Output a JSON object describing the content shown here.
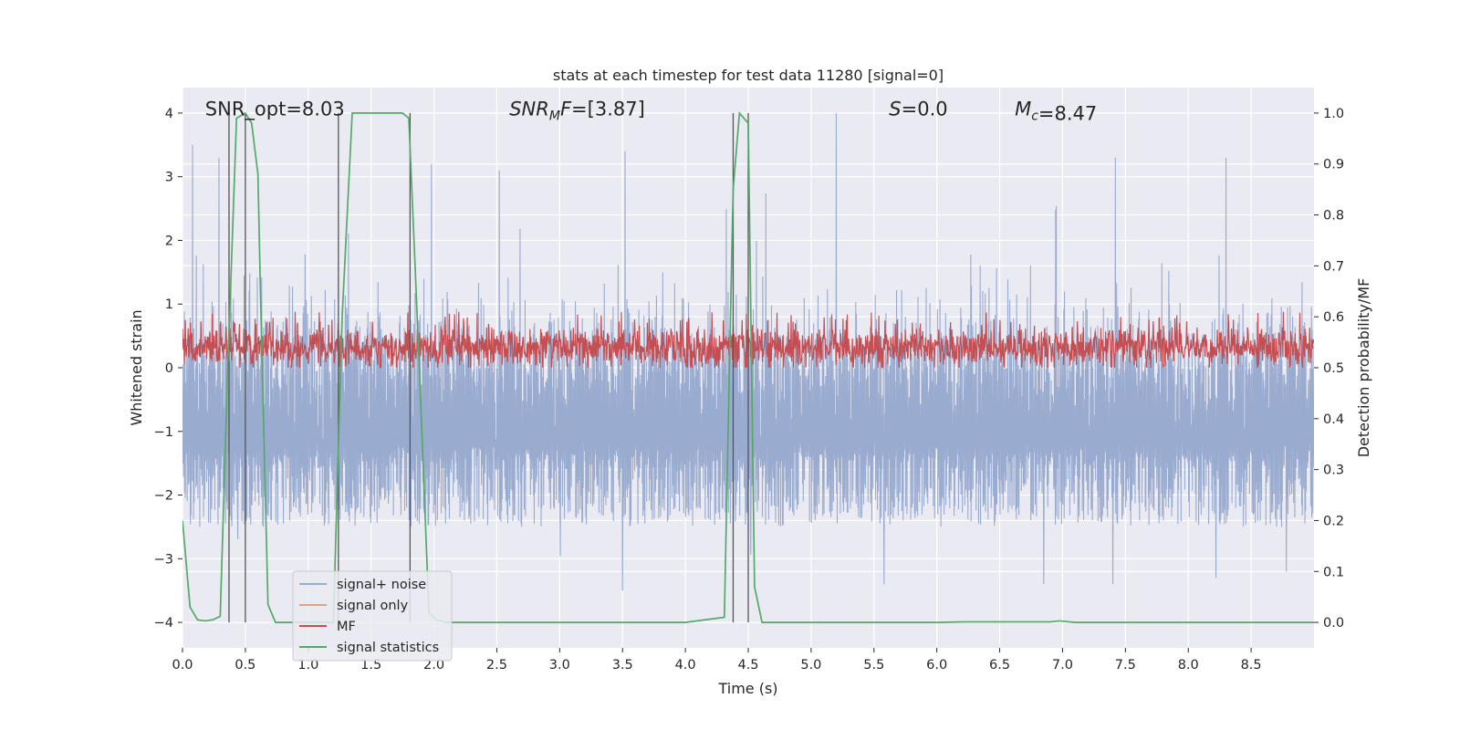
{
  "chart_data": {
    "type": "line",
    "title": "stats at each timestep for test data 11280 [signal=0]",
    "xlabel": "Time (s)",
    "ylabel_left": "Whitened strain",
    "ylabel_right": "Detection probability/MF",
    "xlim": [
      0.0,
      9.0
    ],
    "ylim_left": [
      -4.4,
      4.4
    ],
    "ylim_right": [
      -0.05,
      1.05
    ],
    "x_ticks": [
      0.0,
      0.5,
      1.0,
      1.5,
      2.0,
      2.5,
      3.0,
      3.5,
      4.0,
      4.5,
      5.0,
      5.5,
      6.0,
      6.5,
      7.0,
      7.5,
      8.0,
      8.5
    ],
    "x_tick_labels": [
      "0.0",
      "0.5",
      "1.0",
      "1.5",
      "2.0",
      "2.5",
      "3.0",
      "3.5",
      "4.0",
      "4.5",
      "5.0",
      "5.5",
      "6.0",
      "6.5",
      "7.0",
      "7.5",
      "8.0",
      "8.5"
    ],
    "left_ticks": [
      4,
      3,
      2,
      1,
      0,
      -1,
      -2,
      -3,
      -4
    ],
    "left_tick_labels": [
      "4",
      "3",
      "2",
      "1",
      "0",
      "−1",
      "−2",
      "−3",
      "−4"
    ],
    "right_ticks": [
      1.0,
      0.9,
      0.8,
      0.7,
      0.6,
      0.5,
      0.4,
      0.3,
      0.2,
      0.1,
      0.0
    ],
    "right_tick_labels": [
      "1.0",
      "0.9",
      "0.8",
      "0.7",
      "0.6",
      "0.5",
      "0.4",
      "0.3",
      "0.2",
      "0.1",
      "0.0"
    ],
    "grid": true,
    "legend_location": "lower-left",
    "annotations": [
      {
        "name": "snr-opt",
        "text": "SNR_opt=8.03",
        "t": 0.18,
        "p": 1.01
      },
      {
        "name": "snr-mf",
        "text": "SNR_MF=[3.87]",
        "t": 2.6,
        "p": 1.01
      },
      {
        "name": "s-value",
        "text": "S=0.0",
        "t": 5.62,
        "p": 1.01
      },
      {
        "name": "chirp-mass",
        "text": "M_c=8.47",
        "t": 6.62,
        "p": 1.01
      }
    ],
    "vertical_markers": [
      0.37,
      0.5,
      1.24,
      1.81,
      4.38,
      4.5
    ],
    "series": [
      {
        "name": "signal+ noise",
        "color": "#9aabd0",
        "axis": "left",
        "description": "dense whitened strain noise, amplitude mostly within -2.6..2.4, spikes to about 4 at t=5.2 and -3.5 at t=3.5",
        "t_range": [
          0.0,
          9.0
        ],
        "typical_low": -2.6,
        "typical_high": 2.4,
        "spikes": [
          [
            0.08,
            3.5
          ],
          [
            0.29,
            3.3
          ],
          [
            1.98,
            3.2
          ],
          [
            2.52,
            3.1
          ],
          [
            3.52,
            3.4
          ],
          [
            5.2,
            4.0
          ],
          [
            7.42,
            3.3
          ],
          [
            8.3,
            3.3
          ],
          [
            3.5,
            -3.5
          ],
          [
            5.58,
            -3.4
          ],
          [
            6.85,
            -3.4
          ],
          [
            7.4,
            -3.4
          ],
          [
            8.22,
            -3.3
          ],
          [
            8.78,
            -3.2
          ]
        ]
      },
      {
        "name": "signal only",
        "color": "#e8a07c",
        "axis": "left",
        "description": "not visible (signal=0)"
      },
      {
        "name": "MF",
        "color": "#c44e52",
        "axis": "right",
        "description": "matched-filter output oscillating around 0.54, range about 0.5..0.6",
        "t_range": [
          0.0,
          9.0
        ],
        "center": 0.54,
        "low": 0.5,
        "high": 0.61
      },
      {
        "name": "signal statistics",
        "color": "#55a868",
        "axis": "right",
        "x": [
          0.0,
          0.06,
          0.12,
          0.18,
          0.24,
          0.3,
          0.36,
          0.43,
          0.5,
          0.55,
          0.6,
          0.62,
          0.68,
          0.74,
          0.8,
          1.0,
          1.2,
          1.27,
          1.35,
          1.45,
          1.55,
          1.65,
          1.75,
          1.8,
          1.85,
          1.9,
          1.96,
          2.02,
          2.1,
          2.3,
          2.6,
          3.0,
          3.5,
          4.0,
          4.31,
          4.35,
          4.38,
          4.43,
          4.5,
          4.55,
          4.61,
          4.8,
          5.5,
          6.0,
          6.22,
          6.3,
          6.9,
          6.98,
          7.1,
          8.0,
          9.0
        ],
        "y": [
          0.2,
          0.03,
          0.005,
          0.003,
          0.005,
          0.012,
          0.5,
          0.99,
          1.0,
          0.98,
          0.88,
          0.65,
          0.035,
          0.0,
          0.0,
          0.0,
          0.0,
          0.6,
          1.0,
          1.0,
          1.0,
          1.0,
          1.0,
          0.99,
          0.7,
          0.4,
          0.02,
          0.005,
          0.0,
          0.0,
          0.0,
          0.0,
          0.0,
          0.0,
          0.01,
          0.5,
          0.85,
          1.0,
          0.98,
          0.07,
          0.0,
          0.0,
          0.0,
          0.0,
          0.001,
          0.001,
          0.001,
          0.003,
          0.0,
          0.0,
          0.0
        ]
      }
    ]
  }
}
